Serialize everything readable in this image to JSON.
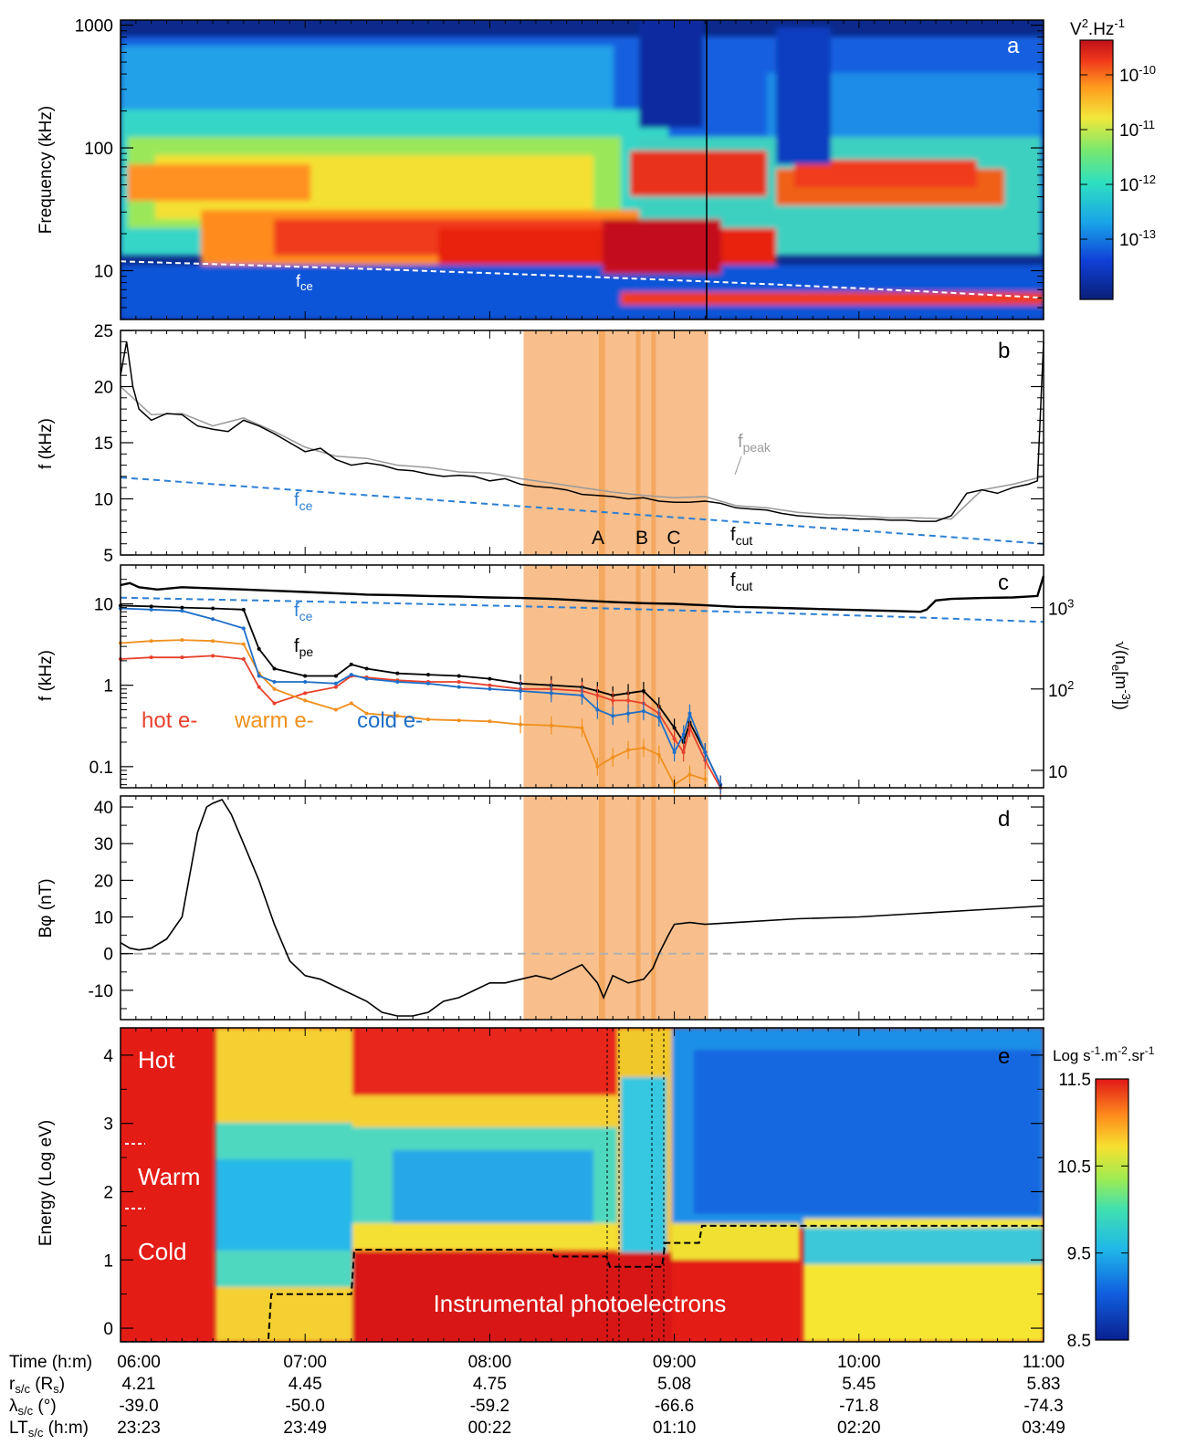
{
  "chart_data": {
    "type": "multi-panel time series",
    "time_axis": {
      "row_labels": [
        "Time (h:m)",
        "r",
        "λ",
        "LT"
      ],
      "row_subscripts": [
        "",
        "s/c",
        "s/c",
        "s/c"
      ],
      "row_units": [
        "",
        "(R",
        "(°)",
        "(h:m)"
      ],
      "row_unit_sub": [
        "",
        "s",
        "",
        ""
      ],
      "row_unit_close": [
        "",
        ")",
        "",
        ""
      ],
      "ticks": [
        {
          "t": 0,
          "time": "06:00",
          "r": "4.21",
          "lat": "-39.0",
          "lt": "23:23"
        },
        {
          "t": 60,
          "time": "07:00",
          "r": "4.45",
          "lat": "-50.0",
          "lt": "23:49"
        },
        {
          "t": 120,
          "time": "08:00",
          "r": "4.75",
          "lat": "-59.2",
          "lt": "00:22"
        },
        {
          "t": 180,
          "time": "09:00",
          "r": "5.08",
          "lat": "-66.6",
          "lt": "01:10"
        },
        {
          "t": 240,
          "time": "10:00",
          "r": "5.45",
          "lat": "-71.8",
          "lt": "02:20"
        },
        {
          "t": 300,
          "time": "11:00",
          "r": "5.83",
          "lat": "-74.3",
          "lt": "03:49"
        }
      ],
      "range_min": [
        0,
        300
      ]
    },
    "highlight_interval_min": [
      131,
      191
    ],
    "events": [
      {
        "label": "A",
        "t": 157.5
      },
      {
        "label": "B",
        "t": 170.5
      },
      {
        "label": "C",
        "t": 174
      }
    ],
    "panels": {
      "a": {
        "letter": "a",
        "type": "spectrogram",
        "ylabel": "Frequency (kHz)",
        "ylog": true,
        "ylim": [
          4,
          1100
        ],
        "yticks": [
          "10",
          "100",
          "1000"
        ],
        "colorbar": {
          "title": "V",
          "title_sup1": "2",
          "title_mid": ".Hz",
          "title_sup2": "-1",
          "ticks": [
            {
              "base": "10",
              "exp": "-10"
            },
            {
              "base": "10",
              "exp": "-11"
            },
            {
              "base": "10",
              "exp": "-12"
            },
            {
              "base": "10",
              "exp": "-13"
            }
          ]
        },
        "fce_label": "f",
        "fce_sub": "ce"
      },
      "b": {
        "letter": "b",
        "type": "line",
        "ylabel": "f (kHz)",
        "ylim": [
          5,
          25
        ],
        "yticks": [
          "5",
          "10",
          "15",
          "20",
          "25"
        ],
        "fce": {
          "label": "f",
          "sub": "ce",
          "start": 11.9,
          "end": 6.0,
          "color": "#2c7fd4"
        },
        "series_labels": [
          {
            "label": "f",
            "sub": "peak",
            "color": "#9a9a9a"
          },
          {
            "label": "f",
            "sub": "cut",
            "color": "#000000"
          }
        ],
        "series": [
          {
            "name": "fcut",
            "x": [
              0,
              2,
              4,
              6,
              10,
              15,
              20,
              25,
              30,
              35,
              40,
              45,
              50,
              55,
              60,
              65,
              70,
              75,
              80,
              85,
              90,
              95,
              100,
              105,
              110,
              115,
              120,
              125,
              130,
              135,
              140,
              145,
              150,
              155,
              160,
              165,
              170,
              175,
              180,
              185,
              190,
              195,
              200,
              205,
              210,
              215,
              220,
              225,
              230,
              235,
              240,
              245,
              250,
              255,
              260,
              265,
              270,
              275,
              280,
              285,
              290,
              295,
              298,
              300
            ],
            "y": [
              21,
              24,
              20,
              18,
              17,
              17.6,
              17.5,
              16.5,
              16.2,
              16,
              17,
              16.5,
              15.8,
              15,
              14.2,
              14.5,
              13.5,
              13,
              13.2,
              13,
              12.6,
              12.5,
              12.2,
              12,
              12.1,
              12,
              11.6,
              11.8,
              11.3,
              11.1,
              11,
              10.8,
              10.4,
              10.3,
              10.2,
              10,
              10.1,
              9.8,
              9.7,
              9.7,
              9.8,
              9.6,
              9.2,
              9.1,
              9.0,
              8.7,
              8.5,
              8.4,
              8.3,
              8.3,
              8.2,
              8.2,
              8.1,
              8.1,
              8.0,
              8.0,
              8.5,
              10.5,
              10.8,
              10.5,
              11,
              11.3,
              11.6,
              24
            ]
          },
          {
            "name": "fpeak",
            "x": [
              0,
              4,
              10,
              20,
              30,
              40,
              50,
              60,
              70,
              80,
              90,
              100,
              110,
              120,
              130,
              140,
              150,
              160,
              170,
              180,
              190,
              200,
              210,
              220,
              230,
              240,
              250,
              260,
              270,
              280,
              290,
              300
            ],
            "y": [
              20,
              19,
              17.5,
              17.6,
              16.5,
              17.2,
              16,
              14.6,
              13.8,
              13.6,
              13,
              12.8,
              12.4,
              12.3,
              11.8,
              11.4,
              11,
              10.6,
              10.3,
              10.1,
              10.2,
              9.4,
              9.2,
              8.8,
              8.6,
              8.5,
              8.3,
              8.3,
              8.2,
              10.8,
              11.3,
              12
            ]
          }
        ]
      },
      "c": {
        "letter": "c",
        "type": "line",
        "ylabel": "f (kHz)",
        "ylog": true,
        "ylim": [
          0.055,
          30
        ],
        "yticks": [
          "0.1",
          "1",
          "10"
        ],
        "right_axis": {
          "label": "√(n",
          "label_sub": "e",
          "label_mid": "[m",
          "label_sup": "-3",
          "label_end": "])",
          "ticks": [
            {
              "f_khz": 0.09,
              "base": "10",
              "exp": ""
            },
            {
              "f_khz": 0.9,
              "base": "10",
              "exp": "2"
            },
            {
              "f_khz": 9.0,
              "base": "10",
              "exp": "3"
            }
          ]
        },
        "labels": {
          "fcut": {
            "label": "f",
            "sub": "cut"
          },
          "fce": {
            "label": "f",
            "sub": "ce"
          },
          "fpe": {
            "label": "f",
            "sub": "pe"
          }
        },
        "population_labels": [
          {
            "text": "hot e-",
            "color": "#e8412c"
          },
          {
            "text": "warm e-",
            "color": "#f0901e"
          },
          {
            "text": "cold e-",
            "color": "#1f6fc8"
          }
        ],
        "fce": {
          "start": 11.9,
          "end": 6.0,
          "color": "#2c7fd4"
        },
        "series": [
          {
            "name": "fcut",
            "x": [
              0,
              3,
              6,
              12,
              20,
              30,
              40,
              50,
              60,
              70,
              80,
              90,
              100,
              110,
              120,
              130,
              140,
              150,
              160,
              170,
              180,
              190,
              200,
              210,
              220,
              230,
              240,
              250,
              260,
              262,
              265,
              270,
              280,
              290,
              298,
              300
            ],
            "y": [
              17,
              18,
              16,
              15,
              16,
              15.5,
              15,
              14.5,
              14,
              13.5,
              13,
              12.8,
              12.5,
              12.3,
              12,
              11.8,
              11.5,
              11,
              10.5,
              10.2,
              10,
              9.6,
              9.2,
              9,
              8.8,
              8.6,
              8.4,
              8.2,
              8.0,
              8.5,
              11,
              11.5,
              11.8,
              12,
              12.5,
              22
            ]
          },
          {
            "name": "fpe",
            "x": [
              0,
              10,
              20,
              30,
              40,
              45,
              50,
              60,
              70,
              75,
              80,
              90,
              100,
              110,
              120,
              130,
              140,
              150,
              155,
              160,
              165,
              170,
              175,
              180,
              183,
              185,
              190,
              195
            ],
            "y": [
              9.5,
              9.3,
              9.0,
              8.8,
              8.5,
              2.8,
              1.6,
              1.3,
              1.3,
              1.8,
              1.6,
              1.4,
              1.35,
              1.3,
              1.2,
              1.05,
              1.0,
              0.95,
              0.85,
              0.75,
              0.8,
              0.85,
              0.55,
              0.3,
              0.2,
              0.35,
              0.15,
              0.06
            ]
          },
          {
            "name": "hot",
            "x": [
              0,
              10,
              20,
              30,
              40,
              45,
              50,
              60,
              70,
              75,
              80,
              90,
              100,
              110,
              120,
              130,
              140,
              150,
              155,
              160,
              165,
              170,
              175,
              180,
              183,
              185,
              190,
              195
            ],
            "y": [
              2.1,
              2.2,
              2.2,
              2.3,
              2.1,
              0.95,
              0.6,
              0.8,
              0.95,
              1.3,
              1.25,
              1.15,
              1.1,
              1.1,
              1.0,
              0.9,
              0.9,
              0.85,
              0.75,
              0.65,
              0.65,
              0.6,
              0.45,
              0.22,
              0.15,
              0.3,
              0.12,
              0.05
            ]
          },
          {
            "name": "warm",
            "x": [
              0,
              10,
              20,
              30,
              40,
              45,
              50,
              60,
              70,
              75,
              80,
              90,
              100,
              110,
              120,
              130,
              140,
              150,
              155,
              160,
              165,
              170,
              175,
              180,
              185,
              190
            ],
            "y": [
              3.3,
              3.5,
              3.6,
              3.5,
              3.2,
              1.4,
              0.9,
              0.65,
              0.5,
              0.6,
              0.45,
              0.42,
              0.38,
              0.37,
              0.36,
              0.33,
              0.32,
              0.3,
              0.1,
              0.13,
              0.16,
              0.17,
              0.14,
              0.06,
              0.08,
              0.07
            ]
          },
          {
            "name": "cold",
            "x": [
              0,
              10,
              20,
              30,
              40,
              45,
              50,
              60,
              70,
              75,
              80,
              90,
              100,
              110,
              120,
              130,
              140,
              150,
              155,
              160,
              165,
              170,
              175,
              180,
              183,
              185,
              190,
              195
            ],
            "y": [
              8.8,
              8.5,
              8.2,
              6.5,
              5.0,
              1.3,
              1.1,
              1.1,
              1.05,
              1.35,
              1.2,
              1.1,
              1.05,
              0.95,
              0.9,
              0.85,
              0.8,
              0.75,
              0.5,
              0.42,
              0.45,
              0.48,
              0.4,
              0.15,
              0.25,
              0.45,
              0.15,
              0.06
            ]
          }
        ]
      },
      "d": {
        "letter": "d",
        "type": "line",
        "ylabel": "Bφ (nT)",
        "ylim": [
          -18,
          43
        ],
        "yticks": [
          "-10",
          "0",
          "10",
          "20",
          "30",
          "40"
        ],
        "series": [
          {
            "name": "Bphi",
            "x": [
              0,
              3,
              6,
              10,
              15,
              20,
              25,
              28,
              30,
              33,
              36,
              40,
              45,
              50,
              55,
              60,
              65,
              70,
              75,
              80,
              85,
              90,
              95,
              100,
              105,
              110,
              115,
              120,
              125,
              130,
              135,
              140,
              145,
              150,
              155,
              157,
              160,
              165,
              170,
              173,
              175,
              178,
              180,
              185,
              190,
              200,
              220,
              240,
              260,
              280,
              300
            ],
            "y": [
              3,
              1.5,
              1,
              1.5,
              4,
              10,
              33,
              40,
              41,
              42,
              38,
              30,
              20,
              8,
              -2,
              -6,
              -7,
              -9,
              -11,
              -13,
              -16,
              -17,
              -17,
              -16,
              -13,
              -12,
              -10,
              -8,
              -8,
              -7,
              -6,
              -7,
              -5,
              -3,
              -8,
              -12,
              -6,
              -8,
              -7,
              -4,
              0,
              5,
              8,
              8.5,
              8,
              8.5,
              9.5,
              10,
              11,
              12,
              13
            ]
          }
        ],
        "zero_line": 0
      },
      "e": {
        "letter": "e",
        "type": "spectrogram",
        "ylabel": "Energy (Log eV)",
        "ylim": [
          -0.2,
          4.4
        ],
        "yticks": [
          "0",
          "1",
          "2",
          "3",
          "4"
        ],
        "region_labels": [
          "Hot",
          "Warm",
          "Cold",
          "Instrumental photoelectrons"
        ],
        "colorbar": {
          "title": "Log s",
          "title_sup1": "-1",
          "title_mid": ".m",
          "title_sup2": "-2",
          "title_mid2": ".sr",
          "title_sup3": "-1",
          "ticks": [
            "11.5",
            "10.5",
            "9.5",
            "8.5"
          ]
        },
        "threshold_line": {
          "x": [
            0,
            48,
            49,
            75,
            76,
            140,
            141,
            158,
            159,
            176,
            177,
            188,
            189,
            300
          ],
          "y": [
            -0.2,
            -0.2,
            0.5,
            0.5,
            1.15,
            1.15,
            1.05,
            1.05,
            0.9,
            0.9,
            1.25,
            1.25,
            1.5,
            1.5
          ]
        }
      }
    }
  }
}
